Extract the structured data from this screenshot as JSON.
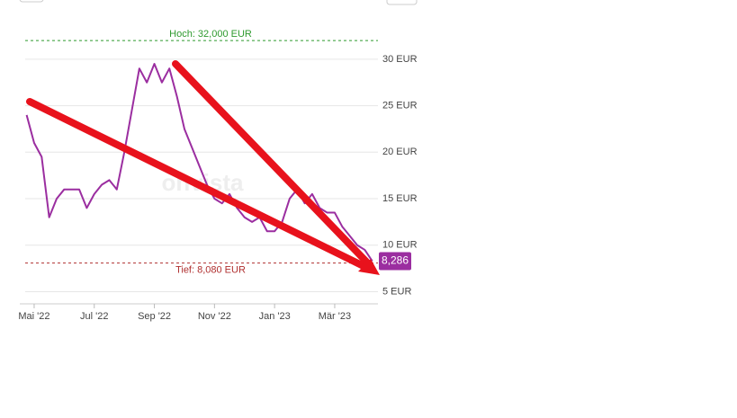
{
  "chart_data": {
    "type": "line",
    "watermark": "onvista",
    "categories": [
      null,
      "Mai '22",
      null,
      null,
      null,
      null,
      null,
      null,
      null,
      "Jul '22",
      null,
      null,
      null,
      null,
      null,
      null,
      null,
      "Sep '22",
      null,
      null,
      null,
      null,
      null,
      null,
      null,
      "Nov '22",
      null,
      null,
      null,
      null,
      null,
      null,
      null,
      "Jan '23",
      null,
      null,
      null,
      null,
      null,
      null,
      null,
      "Mär '23",
      null,
      null,
      null,
      null,
      null
    ],
    "values": [
      24,
      21,
      19.5,
      13,
      15,
      16,
      16,
      16,
      14,
      15.5,
      16.5,
      17,
      16,
      20,
      24.5,
      29,
      27.5,
      29.5,
      27.5,
      29,
      26,
      22.5,
      20.5,
      18.5,
      16.5,
      15,
      14.5,
      15.5,
      14,
      13,
      12.5,
      13,
      11.5,
      11.5,
      12.5,
      15,
      16,
      14.5,
      15.5,
      14,
      13.5,
      13.5,
      12,
      11,
      10,
      9.5,
      8.286
    ],
    "value_labels": [
      null,
      null,
      null,
      null,
      null,
      null,
      null,
      null,
      null,
      null,
      null,
      null,
      null,
      null,
      null,
      null,
      null,
      null,
      null,
      null,
      null,
      null,
      null,
      null,
      null,
      null,
      null,
      null,
      null,
      null,
      null,
      null,
      null,
      null,
      null,
      null,
      null,
      null,
      null,
      null,
      null,
      null,
      null,
      null,
      null,
      null,
      "8,286"
    ],
    "color": "#9b2ea0",
    "ylim": [
      3.5,
      32.5
    ],
    "yticks": [
      {
        "value": 5,
        "label": "5 EUR"
      },
      {
        "value": 10,
        "label": "10 EUR"
      },
      {
        "value": 15,
        "label": "15 EUR"
      },
      {
        "value": 20,
        "label": "20 EUR"
      },
      {
        "value": 25,
        "label": "25 EUR"
      },
      {
        "value": 30,
        "label": "30 EUR"
      }
    ],
    "grid": true,
    "reference_lines": [
      {
        "label": "Hoch: 32,000 EUR",
        "value": 32,
        "color": "#2e9a2e"
      },
      {
        "label": "Tief: 8,080 EUR",
        "value": 8.08,
        "color": "#b03030"
      }
    ]
  }
}
